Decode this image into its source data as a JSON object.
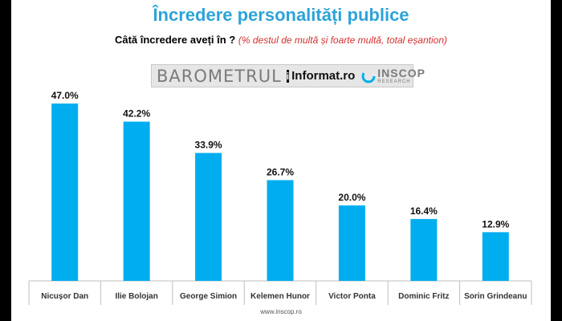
{
  "header": {
    "title": "Încredere personalități publice",
    "question": "Câtă încredere aveți în ?",
    "note": "(% destul de multă și foarte multă,  total eșantion)"
  },
  "banner": {
    "barometru": "BAROMETRUL",
    "logo_letter": "i",
    "informat": "Informat.ro",
    "inscop": "INSCOP",
    "research": "RESEARCH"
  },
  "chart_data": {
    "type": "bar",
    "title": "Încredere personalități publice",
    "subtitle": "Câtă încredere aveți în ? (% destul de multă și foarte multă,  total eșantion)",
    "categories": [
      "Nicușor Dan",
      "Ilie Bolojan",
      "George Simion",
      "Kelemen Hunor",
      "Victor Ponta",
      "Dominic Fritz",
      "Sorin Grindeanu"
    ],
    "values": [
      47.0,
      42.2,
      33.9,
      26.7,
      20.0,
      16.4,
      12.9
    ],
    "labels": [
      "47.0%",
      "42.2%",
      "33.9%",
      "26.7%",
      "20.0%",
      "16.4%",
      "12.9%"
    ],
    "xlabel": "",
    "ylabel": "",
    "ylim": [
      0,
      47
    ],
    "grid": false,
    "bar_color": "#00aeef"
  },
  "footer": {
    "url": "www.inscop.ro"
  },
  "colors": {
    "title": "#2ea3d8",
    "note": "#d62f2f",
    "bar": "#00aeef"
  }
}
